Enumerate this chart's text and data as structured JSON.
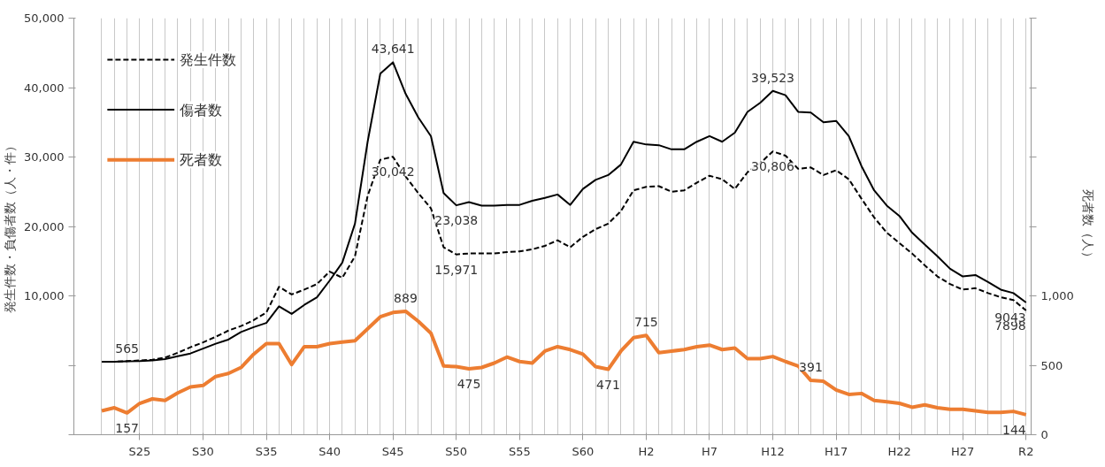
{
  "chart_data": {
    "type": "line",
    "ylabel": "発生件数・負傷者数（人・件）",
    "y2label": "死者数（人）",
    "categories": [
      null,
      null,
      null,
      "S25",
      null,
      null,
      null,
      null,
      "S30",
      null,
      null,
      null,
      null,
      "S35",
      null,
      null,
      null,
      null,
      "S40",
      null,
      null,
      null,
      null,
      "S45",
      null,
      null,
      null,
      null,
      "S50",
      null,
      null,
      null,
      null,
      "S55",
      null,
      null,
      null,
      null,
      "S60",
      null,
      null,
      null,
      null,
      "H2",
      null,
      null,
      null,
      null,
      "H7",
      null,
      null,
      null,
      null,
      "H12",
      null,
      null,
      null,
      null,
      "H17",
      null,
      null,
      null,
      null,
      "H22",
      null,
      null,
      null,
      null,
      "H27",
      null,
      null,
      null,
      null,
      "R2"
    ],
    "ylim": [
      -10000,
      50000
    ],
    "yticks": [
      {
        "value": -10000,
        "label": null
      },
      {
        "value": 0,
        "label": null
      },
      {
        "value": 10000,
        "label": "10,000"
      },
      {
        "value": 20000,
        "label": "20,000"
      },
      {
        "value": 30000,
        "label": "30,000"
      },
      {
        "value": 40000,
        "label": "40,000"
      },
      {
        "value": 50000,
        "label": "50,000"
      }
    ],
    "y2lim": [
      0,
      3000
    ],
    "y2ticks": [
      0,
      500,
      {
        "value": 1000,
        "label": "1,000"
      },
      {
        "value": 1500,
        "label": null
      },
      {
        "value": 2000,
        "label": null
      },
      {
        "value": 2500,
        "label": null
      },
      {
        "value": 3000,
        "label": null
      }
    ],
    "grid": "x",
    "legend": "top left",
    "marker": "none",
    "series": [
      {
        "name": "発生件数",
        "color": "#000000",
        "line_style": "dashed",
        "values": [
          500,
          500,
          600,
          700,
          800,
          1100,
          1800,
          2600,
          3300,
          4100,
          5000,
          5650,
          6500,
          7600,
          11300,
          10200,
          10900,
          11700,
          13500,
          12600,
          15700,
          24400,
          29600,
          30042,
          27200,
          24800,
          22600,
          17000,
          15971,
          16100,
          16100,
          16100,
          16300,
          16400,
          16700,
          17200,
          18000,
          17000,
          18500,
          19600,
          20400,
          22200,
          25200,
          25700,
          25800,
          25000,
          25200,
          26300,
          27300,
          26800,
          25400,
          27800,
          29100,
          30806,
          30200,
          28300,
          28500,
          27400,
          28100,
          26800,
          24000,
          21300,
          19100,
          17600,
          16100,
          14400,
          12800,
          11700,
          10900,
          11100,
          10400,
          9800,
          9400,
          7898
        ],
        "value_labels": [
          null,
          null,
          null,
          null,
          null,
          null,
          null,
          null,
          null,
          null,
          null,
          null,
          null,
          null,
          null,
          null,
          null,
          null,
          null,
          null,
          null,
          null,
          null,
          "30,042",
          null,
          null,
          null,
          null,
          "15,971",
          null,
          null,
          null,
          null,
          null,
          null,
          null,
          null,
          null,
          null,
          null,
          null,
          null,
          null,
          null,
          null,
          null,
          null,
          null,
          null,
          null,
          null,
          null,
          null,
          "30,806",
          null,
          null,
          null,
          null,
          null,
          null,
          null,
          null,
          null,
          null,
          null,
          null,
          null,
          null,
          null,
          null,
          null,
          null,
          null,
          "7898"
        ]
      },
      {
        "name": "傷者数",
        "color": "#000000",
        "line_style": "solid",
        "values": [
          500,
          500,
          565,
          600,
          700,
          900,
          1300,
          1700,
          2400,
          3100,
          3700,
          4800,
          5500,
          6100,
          8500,
          7400,
          8700,
          9800,
          12200,
          14800,
          20400,
          32200,
          42000,
          43641,
          39100,
          35700,
          33000,
          24800,
          23038,
          23500,
          23000,
          23000,
          23100,
          23100,
          23700,
          24100,
          24600,
          23100,
          25400,
          26700,
          27400,
          28900,
          32200,
          31800,
          31700,
          31100,
          31100,
          32200,
          33000,
          32200,
          33500,
          36500,
          37800,
          39523,
          38900,
          36500,
          36400,
          35000,
          35200,
          33000,
          28700,
          25200,
          23000,
          21500,
          19100,
          17400,
          15700,
          13900,
          12800,
          13000,
          12000,
          10900,
          10400,
          9043
        ],
        "value_labels": [
          null,
          null,
          "565",
          null,
          null,
          null,
          null,
          null,
          null,
          null,
          null,
          null,
          null,
          null,
          null,
          null,
          null,
          null,
          null,
          null,
          null,
          null,
          null,
          "43,641",
          null,
          null,
          null,
          null,
          "23,038",
          null,
          null,
          null,
          null,
          null,
          null,
          null,
          null,
          null,
          null,
          null,
          null,
          null,
          null,
          null,
          null,
          null,
          null,
          null,
          null,
          null,
          null,
          null,
          null,
          "39,523",
          null,
          null,
          null,
          null,
          null,
          null,
          null,
          null,
          null,
          null,
          null,
          null,
          null,
          null,
          null,
          null,
          null,
          null,
          null,
          "9043"
        ]
      },
      {
        "name": "死者数",
        "color": "#ed7d31",
        "line_style": "solid",
        "axis": "y2",
        "values": [
          172,
          194,
          157,
          226,
          258,
          247,
          301,
          344,
          355,
          419,
          441,
          484,
          580,
          656,
          656,
          505,
          634,
          634,
          656,
          667,
          677,
          763,
          849,
          880,
          889,
          817,
          731,
          495,
          490,
          475,
          484,
          516,
          559,
          527,
          516,
          602,
          634,
          613,
          580,
          490,
          471,
          602,
          699,
          715,
          591,
          602,
          613,
          634,
          645,
          613,
          624,
          548,
          548,
          563,
          527,
          495,
          391,
          385,
          323,
          290,
          297,
          247,
          237,
          226,
          198,
          215,
          194,
          183,
          183,
          172,
          161,
          161,
          168,
          144
        ],
        "value_labels": [
          null,
          null,
          "157",
          null,
          null,
          null,
          null,
          null,
          null,
          null,
          null,
          null,
          null,
          null,
          null,
          null,
          null,
          null,
          null,
          null,
          null,
          null,
          null,
          null,
          "889",
          null,
          null,
          null,
          null,
          "475",
          null,
          null,
          null,
          null,
          null,
          null,
          null,
          null,
          null,
          null,
          "471",
          null,
          null,
          "715",
          null,
          null,
          null,
          null,
          null,
          null,
          null,
          null,
          null,
          null,
          null,
          null,
          "391",
          null,
          null,
          null,
          null,
          null,
          null,
          null,
          null,
          null,
          null,
          null,
          null,
          null,
          null,
          null,
          null,
          "144"
        ]
      }
    ]
  }
}
